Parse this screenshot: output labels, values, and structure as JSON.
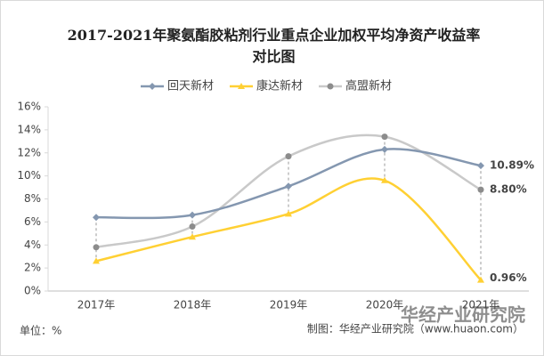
{
  "chart_data": {
    "type": "line",
    "title": "2017-2021年聚氨酯胶粘剂行业重点企业加权平均净资产收益率对比图",
    "categories": [
      "2017年",
      "2018年",
      "2019年",
      "2020年",
      "2021年"
    ],
    "series": [
      {
        "name": "回天新材",
        "color": "#8497b0",
        "marker": "diamond",
        "values": [
          6.4,
          6.6,
          9.1,
          12.3,
          10.89
        ],
        "value_labels": [
          null,
          null,
          null,
          null,
          "10.89%"
        ]
      },
      {
        "name": "康达新材",
        "color": "#ffd033",
        "marker": "triangle",
        "values": [
          2.6,
          4.7,
          6.7,
          9.6,
          0.96
        ],
        "value_labels": [
          null,
          null,
          null,
          null,
          "0.96%"
        ]
      },
      {
        "name": "高盟新材",
        "color": "#c9c9c9",
        "marker": "circle",
        "values": [
          3.8,
          5.6,
          11.7,
          13.4,
          8.8
        ],
        "value_labels": [
          null,
          null,
          null,
          null,
          "8.80%"
        ]
      }
    ],
    "ylim": [
      0,
      16
    ],
    "yticks": [
      {
        "value": 0,
        "label": "0%"
      },
      {
        "value": 2,
        "label": "2%"
      },
      {
        "value": 4,
        "label": "4%"
      },
      {
        "value": 6,
        "label": "6%"
      },
      {
        "value": 8,
        "label": "8%"
      },
      {
        "value": 10,
        "label": "10%"
      },
      {
        "value": 12,
        "label": "12%"
      },
      {
        "value": 14,
        "label": "14%"
      },
      {
        "value": 16,
        "label": "16%"
      }
    ],
    "unit_note": "单位：%",
    "source": "制图：华经产业研究院（www.huaon.com）",
    "watermark": "华经产业研究院",
    "smooth": true
  }
}
